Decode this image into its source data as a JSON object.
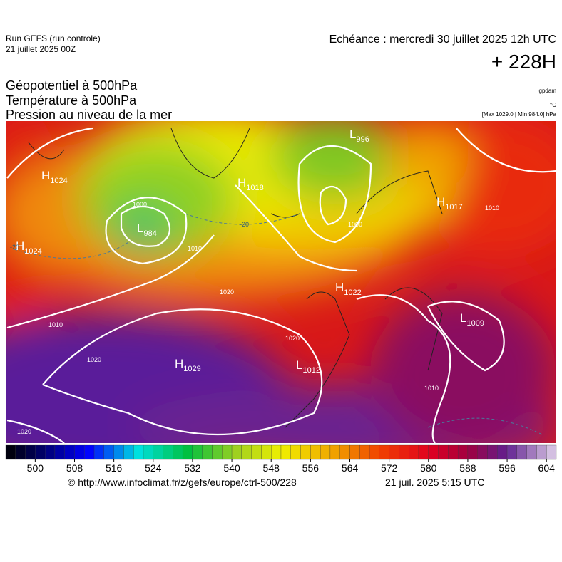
{
  "header": {
    "run": "Run GEFS (run controle)",
    "date": "21 juillet 2025 00Z",
    "echeance": "Echéance : mercredi 30 juillet 2025 12h UTC",
    "lead": "+ 228H"
  },
  "titles": [
    "Géopotentiel à 500hPa",
    "Température à 500hPa",
    "Pression au niveau de la mer"
  ],
  "units": [
    "gpdam",
    "°C",
    "[Max 1029.0 | Min 984.0] hPa"
  ],
  "pressure_centers": [
    {
      "type": "H",
      "value": "1024"
    },
    {
      "type": "H",
      "value": "1024"
    },
    {
      "type": "L",
      "value": "984"
    },
    {
      "type": "H",
      "value": "1018"
    },
    {
      "type": "L",
      "value": "996"
    },
    {
      "type": "H",
      "value": "1017"
    },
    {
      "type": "H",
      "value": "1022"
    },
    {
      "type": "L",
      "value": "1009"
    },
    {
      "type": "H",
      "value": "1029"
    },
    {
      "type": "L",
      "value": "1012"
    }
  ],
  "isobar_labels": [
    "1010",
    "1000",
    "1010",
    "1020",
    "1010",
    "1020",
    "1020",
    "1020",
    "1010",
    "1000",
    "-20",
    "-20"
  ],
  "colorbar": {
    "range": [
      494,
      606
    ],
    "ticks": [
      500,
      508,
      516,
      524,
      532,
      540,
      548,
      556,
      564,
      572,
      580,
      588,
      596,
      604
    ]
  },
  "footer": {
    "url": "© http://www.infoclimat.fr/z/gefs/europe/ctrl-500/228",
    "timestamp": "21 juil. 2025  5:15 UTC"
  }
}
